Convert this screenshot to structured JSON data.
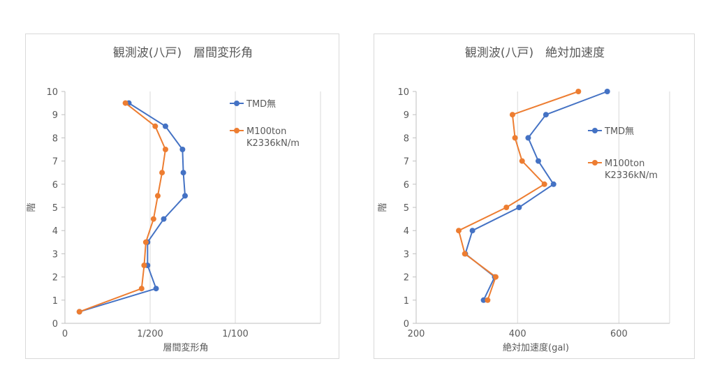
{
  "colors": {
    "series1": "#4472c4",
    "series2": "#ed7d31"
  },
  "chart_data": [
    {
      "type": "line",
      "title": "観測波(八戸)　層間変形角",
      "xlabel": "層間変形角",
      "ylabel": "階",
      "xlim": [
        0,
        0.015
      ],
      "ylim": [
        0,
        10
      ],
      "xticks": [
        {
          "value": 0,
          "label": "0"
        },
        {
          "value": 0.005,
          "label": "1/200"
        },
        {
          "value": 0.01,
          "label": "1/100"
        }
      ],
      "yticks": [
        0,
        1,
        2,
        3,
        4,
        5,
        6,
        7,
        8,
        9,
        10
      ],
      "grid": {
        "vertical": true,
        "horizontal": false
      },
      "legend_position": "right",
      "series": [
        {
          "name": "TMD無",
          "color": "#4472c4",
          "points": [
            [
              0.00085,
              0.5
            ],
            [
              0.00535,
              1.5
            ],
            [
              0.00485,
              2.5
            ],
            [
              0.00485,
              3.5
            ],
            [
              0.0058,
              4.5
            ],
            [
              0.00705,
              5.5
            ],
            [
              0.00695,
              6.5
            ],
            [
              0.0069,
              7.5
            ],
            [
              0.0059,
              8.5
            ],
            [
              0.00375,
              9.5
            ]
          ]
        },
        {
          "name": "M100ton\nK2336kN/m",
          "color": "#ed7d31",
          "points": [
            [
              0.00085,
              0.5
            ],
            [
              0.0045,
              1.5
            ],
            [
              0.00465,
              2.5
            ],
            [
              0.00475,
              3.5
            ],
            [
              0.0052,
              4.5
            ],
            [
              0.00545,
              5.5
            ],
            [
              0.0057,
              6.5
            ],
            [
              0.0059,
              7.5
            ],
            [
              0.0053,
              8.5
            ],
            [
              0.00355,
              9.5
            ]
          ]
        }
      ]
    },
    {
      "type": "line",
      "title": "観測波(八戸)　絶対加速度",
      "xlabel": "絶対加速度(gal)",
      "ylabel": "階",
      "xlim": [
        200,
        700
      ],
      "ylim": [
        0,
        10
      ],
      "xticks": [
        {
          "value": 200,
          "label": "200"
        },
        {
          "value": 400,
          "label": "400"
        },
        {
          "value": 600,
          "label": "600"
        }
      ],
      "yticks": [
        0,
        1,
        2,
        3,
        4,
        5,
        6,
        7,
        8,
        9,
        10
      ],
      "grid": {
        "vertical": true,
        "horizontal": false
      },
      "legend_position": "right",
      "series": [
        {
          "name": "TMD無",
          "color": "#4472c4",
          "points": [
            [
              333,
              1
            ],
            [
              355,
              2
            ],
            [
              297,
              3
            ],
            [
              311,
              4
            ],
            [
              403,
              5
            ],
            [
              471,
              6
            ],
            [
              441,
              7
            ],
            [
              421,
              8
            ],
            [
              456,
              9
            ],
            [
              577,
              10
            ]
          ]
        },
        {
          "name": "M100ton\nK2336kN/m",
          "color": "#ed7d31",
          "points": [
            [
              341,
              1
            ],
            [
              357,
              2
            ],
            [
              296,
              3
            ],
            [
              284,
              4
            ],
            [
              378,
              5
            ],
            [
              453,
              6
            ],
            [
              409,
              7
            ],
            [
              395,
              8
            ],
            [
              390,
              9
            ],
            [
              520,
              10
            ]
          ]
        }
      ]
    }
  ]
}
